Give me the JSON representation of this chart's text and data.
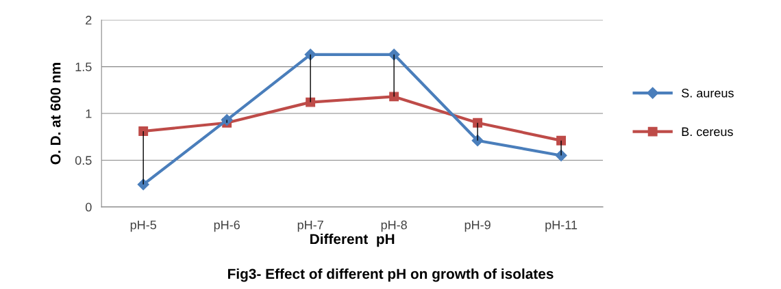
{
  "chart_data": {
    "type": "line",
    "title": "Fig3- Effect of different pH on growth of isolates",
    "xlabel": "Different  pH",
    "ylabel": "O. D. at 600 nm",
    "categories": [
      "pH-5",
      "pH-6",
      "pH-7",
      "pH-8",
      "pH-9",
      "pH-11"
    ],
    "series": [
      {
        "name": "S. aureus",
        "color": "#4a7ebb",
        "marker": "diamond",
        "values": [
          0.24,
          0.93,
          1.63,
          1.63,
          0.71,
          0.55
        ],
        "errors": [
          [
            0.24,
            0.81
          ],
          [
            0.9,
            0.93
          ],
          [
            1.12,
            1.63
          ],
          [
            1.18,
            1.63
          ],
          [
            0.71,
            0.9
          ],
          [
            0.55,
            0.71
          ]
        ]
      },
      {
        "name": "B. cereus",
        "color": "#be4b48",
        "marker": "square",
        "values": [
          0.81,
          0.9,
          1.12,
          1.18,
          0.9,
          0.71
        ]
      }
    ],
    "ylim": [
      0,
      2
    ],
    "yticks": [
      0,
      0.5,
      1,
      1.5,
      2
    ],
    "grid": "y",
    "legend": "right",
    "line_style": "solid"
  }
}
